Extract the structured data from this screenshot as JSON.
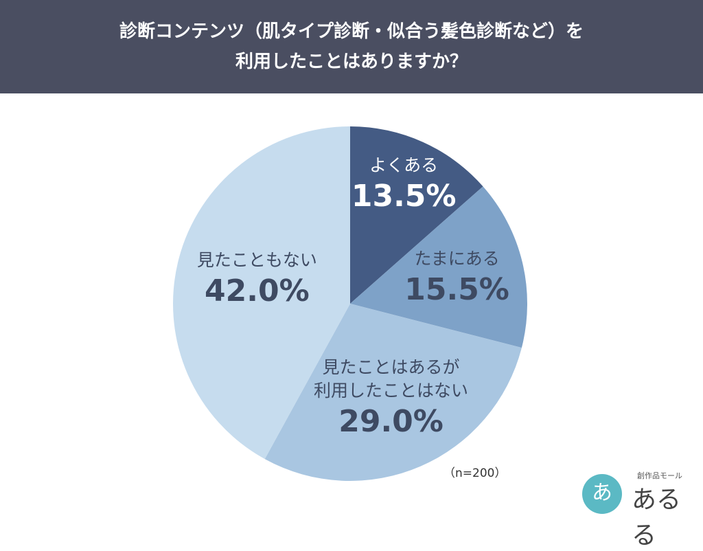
{
  "chart_data": {
    "type": "pie",
    "title": "診断コンテンツ（肌タイプ診断・似合う髪色診断など）を\n利用したことはありますか？",
    "categories": [
      "よくある",
      "たまにある",
      "見たことはあるが\n利用したことはない",
      "見たこともない"
    ],
    "values": [
      13.5,
      15.5,
      29.0,
      42.0
    ],
    "value_labels": [
      "13.5%",
      "15.5%",
      "29.0%",
      "42.0%"
    ],
    "colors": [
      "#445b84",
      "#7ea2c8",
      "#a9c6e1",
      "#c6dcee"
    ],
    "label_colors": [
      "#ffffff",
      "#3e4a62",
      "#3e4a62",
      "#3e4a62"
    ],
    "annotation": "（n=200）"
  },
  "logo": {
    "tagline": "創作品モール",
    "name": "あるる",
    "badge": "あ"
  }
}
